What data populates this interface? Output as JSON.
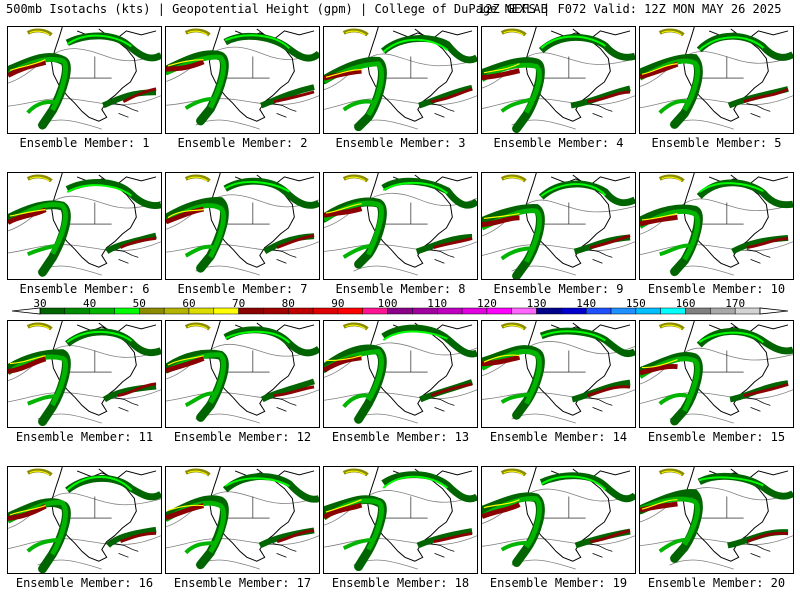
{
  "header": {
    "title": "500mb Isotachs (kts) | Geopotential Height (gpm) | College of DuPage NEXLAB",
    "run_info": "12Z GEFS | F072 Valid: 12Z MON MAY 26 2025"
  },
  "colorbar": {
    "ticks": [
      "30",
      "40",
      "50",
      "60",
      "70",
      "80",
      "90",
      "100",
      "110",
      "120",
      "130",
      "140",
      "150",
      "160",
      "170"
    ],
    "bins": [
      {
        "from": 30,
        "to": 35,
        "color": "#006400"
      },
      {
        "from": 35,
        "to": 40,
        "color": "#008c00"
      },
      {
        "from": 40,
        "to": 45,
        "color": "#00b400"
      },
      {
        "from": 45,
        "to": 50,
        "color": "#00ff00"
      },
      {
        "from": 50,
        "to": 55,
        "color": "#8c8c00"
      },
      {
        "from": 55,
        "to": 60,
        "color": "#b4b400"
      },
      {
        "from": 60,
        "to": 65,
        "color": "#dcdc00"
      },
      {
        "from": 65,
        "to": 70,
        "color": "#ffff00"
      },
      {
        "from": 70,
        "to": 75,
        "color": "#8b0000"
      },
      {
        "from": 75,
        "to": 80,
        "color": "#a00000"
      },
      {
        "from": 80,
        "to": 85,
        "color": "#c00000"
      },
      {
        "from": 85,
        "to": 90,
        "color": "#e00000"
      },
      {
        "from": 90,
        "to": 95,
        "color": "#ff0000"
      },
      {
        "from": 95,
        "to": 100,
        "color": "#ff1493"
      },
      {
        "from": 100,
        "to": 105,
        "color": "#8b008b"
      },
      {
        "from": 105,
        "to": 110,
        "color": "#a000a0"
      },
      {
        "from": 110,
        "to": 115,
        "color": "#c000c0"
      },
      {
        "from": 115,
        "to": 120,
        "color": "#e000e0"
      },
      {
        "from": 120,
        "to": 125,
        "color": "#ff00ff"
      },
      {
        "from": 125,
        "to": 130,
        "color": "#ff66ff"
      },
      {
        "from": 130,
        "to": 135,
        "color": "#00008b"
      },
      {
        "from": 135,
        "to": 140,
        "color": "#0000cd"
      },
      {
        "from": 140,
        "to": 145,
        "color": "#1e50ff"
      },
      {
        "from": 145,
        "to": 150,
        "color": "#1e90ff"
      },
      {
        "from": 150,
        "to": 155,
        "color": "#00bfff"
      },
      {
        "from": 155,
        "to": 160,
        "color": "#00ffff"
      },
      {
        "from": 160,
        "to": 165,
        "color": "#808080"
      },
      {
        "from": 165,
        "to": 170,
        "color": "#a9a9a9"
      },
      {
        "from": 170,
        "to": 175,
        "color": "#d3d3d3"
      }
    ]
  },
  "colors": {
    "jet_dark_green": "#006400",
    "jet_green": "#00b400",
    "jet_light_green": "#00ff00",
    "jet_olive": "#8c8c00",
    "jet_yellow": "#ffff00",
    "jet_dark_red": "#8b0000",
    "height_contour": "#808080",
    "coastline": "#000000"
  },
  "members": [
    {
      "label": "Ensemble Member: 1"
    },
    {
      "label": "Ensemble Member: 2"
    },
    {
      "label": "Ensemble Member: 3"
    },
    {
      "label": "Ensemble Member: 4"
    },
    {
      "label": "Ensemble Member: 5"
    },
    {
      "label": "Ensemble Member: 6"
    },
    {
      "label": "Ensemble Member: 7"
    },
    {
      "label": "Ensemble Member: 8"
    },
    {
      "label": "Ensemble Member: 9"
    },
    {
      "label": "Ensemble Member: 10"
    },
    {
      "label": "Ensemble Member: 11"
    },
    {
      "label": "Ensemble Member: 12"
    },
    {
      "label": "Ensemble Member: 13"
    },
    {
      "label": "Ensemble Member: 14"
    },
    {
      "label": "Ensemble Member: 15"
    },
    {
      "label": "Ensemble Member: 16"
    },
    {
      "label": "Ensemble Member: 17"
    },
    {
      "label": "Ensemble Member: 18"
    },
    {
      "label": "Ensemble Member: 19"
    },
    {
      "label": "Ensemble Member: 20"
    }
  ]
}
